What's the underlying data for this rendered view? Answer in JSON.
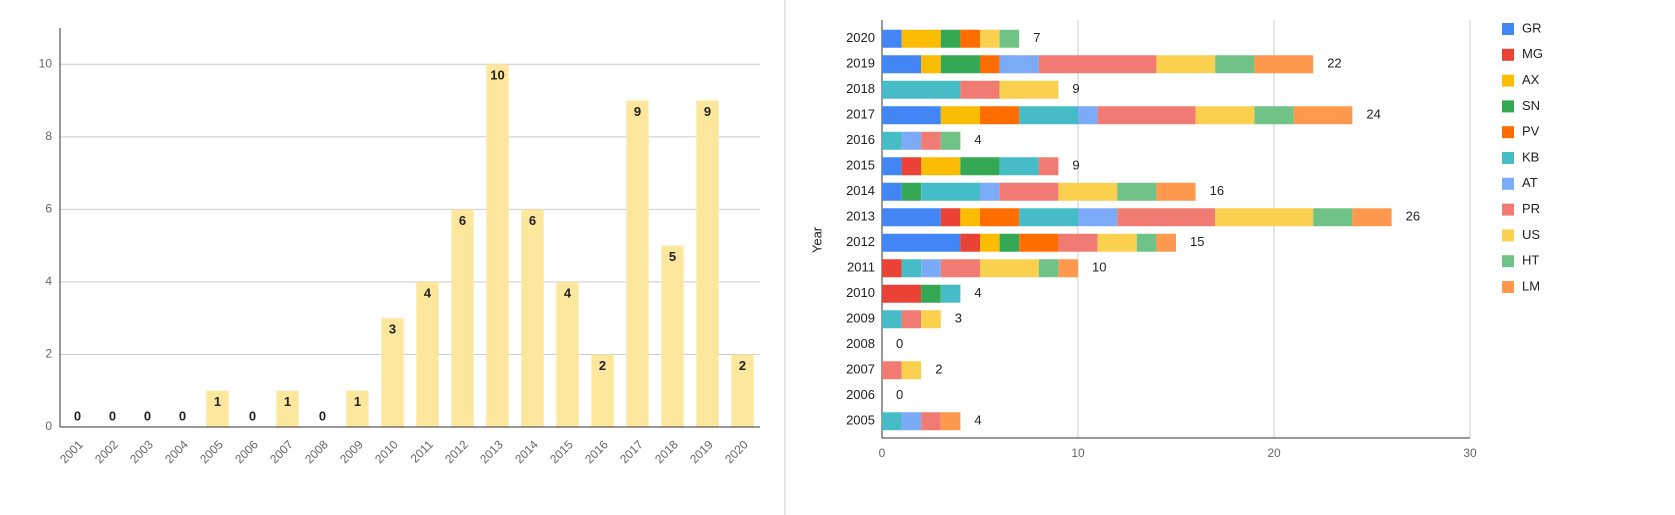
{
  "chart_data": [
    {
      "type": "bar",
      "categories": [
        "2001",
        "2002",
        "2003",
        "2004",
        "2005",
        "2006",
        "2007",
        "2008",
        "2009",
        "2010",
        "2011",
        "2012",
        "2013",
        "2014",
        "2015",
        "2016",
        "2017",
        "2018",
        "2019",
        "2020"
      ],
      "values": [
        0,
        0,
        0,
        0,
        1,
        0,
        1,
        0,
        1,
        3,
        4,
        6,
        10,
        6,
        4,
        2,
        9,
        5,
        9,
        2
      ],
      "color": "#fde79c",
      "ylim": [
        0,
        11
      ],
      "yticks": [
        0,
        2,
        4,
        6,
        8,
        10
      ],
      "grid": true
    },
    {
      "type": "stacked-hbar",
      "y_label": "Year",
      "categories": [
        "2020",
        "2019",
        "2018",
        "2017",
        "2016",
        "2015",
        "2014",
        "2013",
        "2012",
        "2011",
        "2010",
        "2009",
        "2008",
        "2007",
        "2006",
        "2005"
      ],
      "series": [
        {
          "name": "GR",
          "color": "#4285f4",
          "values": [
            1,
            2,
            0,
            3,
            0,
            1,
            1,
            3,
            4,
            0,
            0,
            0,
            0,
            0,
            0,
            0
          ]
        },
        {
          "name": "MG",
          "color": "#ea4335",
          "values": [
            0,
            0,
            0,
            0,
            0,
            1,
            0,
            1,
            1,
            1,
            2,
            0,
            0,
            0,
            0,
            0
          ]
        },
        {
          "name": "AX",
          "color": "#fbbc04",
          "values": [
            2,
            1,
            0,
            2,
            0,
            2,
            0,
            1,
            1,
            0,
            0,
            0,
            0,
            0,
            0,
            0
          ]
        },
        {
          "name": "SN",
          "color": "#34a853",
          "values": [
            1,
            2,
            0,
            0,
            0,
            2,
            1,
            0,
            1,
            0,
            1,
            0,
            0,
            0,
            0,
            0
          ]
        },
        {
          "name": "PV",
          "color": "#ff6d01",
          "values": [
            1,
            1,
            0,
            2,
            0,
            0,
            0,
            2,
            2,
            0,
            0,
            0,
            0,
            0,
            0,
            0
          ]
        },
        {
          "name": "KB",
          "color": "#46bdc6",
          "values": [
            0,
            0,
            4,
            3,
            1,
            2,
            3,
            3,
            0,
            1,
            1,
            1,
            0,
            0,
            0,
            1
          ]
        },
        {
          "name": "AT",
          "color": "#7baaf7",
          "values": [
            0,
            2,
            0,
            1,
            1,
            0,
            1,
            2,
            0,
            1,
            0,
            0,
            0,
            0,
            0,
            1
          ]
        },
        {
          "name": "PR",
          "color": "#f07b72",
          "values": [
            0,
            6,
            2,
            5,
            1,
            1,
            3,
            5,
            2,
            2,
            0,
            1,
            0,
            1,
            0,
            1
          ]
        },
        {
          "name": "US",
          "color": "#fcd04f",
          "values": [
            1,
            3,
            3,
            3,
            0,
            0,
            3,
            5,
            2,
            3,
            0,
            1,
            0,
            1,
            0,
            0
          ]
        },
        {
          "name": "HT",
          "color": "#71c287",
          "values": [
            1,
            2,
            0,
            2,
            1,
            0,
            2,
            2,
            1,
            1,
            0,
            0,
            0,
            0,
            0,
            0
          ]
        },
        {
          "name": "LM",
          "color": "#ff994d",
          "values": [
            0,
            3,
            0,
            3,
            0,
            0,
            2,
            2,
            1,
            1,
            0,
            0,
            0,
            0,
            0,
            1
          ]
        }
      ],
      "totals": [
        7,
        22,
        9,
        24,
        4,
        9,
        16,
        26,
        15,
        10,
        4,
        3,
        0,
        2,
        0,
        4
      ],
      "xlim": [
        0,
        30
      ],
      "xticks": [
        0,
        10,
        20,
        30
      ],
      "grid": true,
      "legend": "right"
    }
  ]
}
